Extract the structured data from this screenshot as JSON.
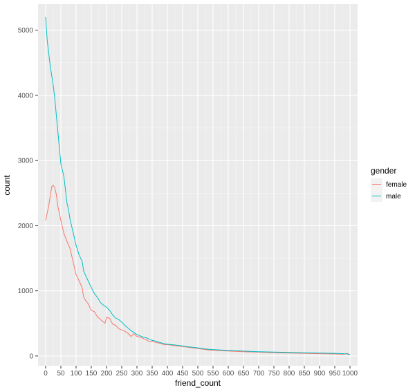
{
  "chart_data": {
    "type": "line",
    "title": "",
    "xlabel": "friend_count",
    "ylabel": "count",
    "xlim": [
      -25,
      1025
    ],
    "ylim": [
      -150,
      5400
    ],
    "x_ticks": [
      0,
      50,
      100,
      150,
      200,
      250,
      300,
      350,
      400,
      450,
      500,
      550,
      600,
      650,
      700,
      750,
      800,
      850,
      900,
      950,
      1000
    ],
    "y_ticks": [
      0,
      1000,
      2000,
      3000,
      4000,
      5000
    ],
    "grid": true,
    "legend": {
      "title": "gender",
      "position": "right"
    },
    "series": [
      {
        "name": "female",
        "color": "#F8766D",
        "points": [
          [
            0,
            2080
          ],
          [
            10,
            2300
          ],
          [
            20,
            2600
          ],
          [
            25,
            2620
          ],
          [
            30,
            2580
          ],
          [
            35,
            2480
          ],
          [
            40,
            2300
          ],
          [
            50,
            2080
          ],
          [
            60,
            1880
          ],
          [
            70,
            1760
          ],
          [
            80,
            1650
          ],
          [
            90,
            1450
          ],
          [
            100,
            1250
          ],
          [
            110,
            1150
          ],
          [
            120,
            1050
          ],
          [
            125,
            900
          ],
          [
            130,
            860
          ],
          [
            140,
            800
          ],
          [
            150,
            700
          ],
          [
            160,
            680
          ],
          [
            170,
            600
          ],
          [
            180,
            560
          ],
          [
            190,
            520
          ],
          [
            195,
            500
          ],
          [
            200,
            590
          ],
          [
            210,
            580
          ],
          [
            220,
            490
          ],
          [
            230,
            470
          ],
          [
            240,
            420
          ],
          [
            250,
            400
          ],
          [
            260,
            380
          ],
          [
            270,
            350
          ],
          [
            280,
            300
          ],
          [
            290,
            340
          ],
          [
            300,
            300
          ],
          [
            310,
            290
          ],
          [
            320,
            270
          ],
          [
            330,
            250
          ],
          [
            340,
            220
          ],
          [
            350,
            230
          ],
          [
            360,
            210
          ],
          [
            370,
            200
          ],
          [
            380,
            190
          ],
          [
            390,
            170
          ],
          [
            400,
            175
          ],
          [
            420,
            160
          ],
          [
            440,
            150
          ],
          [
            460,
            140
          ],
          [
            480,
            125
          ],
          [
            500,
            115
          ],
          [
            520,
            100
          ],
          [
            540,
            90
          ],
          [
            560,
            85
          ],
          [
            580,
            80
          ],
          [
            600,
            75
          ],
          [
            650,
            65
          ],
          [
            700,
            58
          ],
          [
            750,
            50
          ],
          [
            800,
            45
          ],
          [
            850,
            40
          ],
          [
            900,
            35
          ],
          [
            950,
            30
          ],
          [
            980,
            25
          ],
          [
            990,
            40
          ],
          [
            1000,
            20
          ]
        ]
      },
      {
        "name": "male",
        "color": "#00BFC4",
        "points": [
          [
            0,
            5200
          ],
          [
            5,
            4850
          ],
          [
            10,
            4650
          ],
          [
            15,
            4450
          ],
          [
            20,
            4300
          ],
          [
            25,
            4150
          ],
          [
            30,
            3950
          ],
          [
            35,
            3700
          ],
          [
            40,
            3450
          ],
          [
            45,
            3200
          ],
          [
            50,
            2950
          ],
          [
            55,
            2850
          ],
          [
            60,
            2750
          ],
          [
            65,
            2550
          ],
          [
            70,
            2350
          ],
          [
            75,
            2250
          ],
          [
            80,
            2100
          ],
          [
            90,
            1900
          ],
          [
            100,
            1700
          ],
          [
            110,
            1550
          ],
          [
            120,
            1450
          ],
          [
            125,
            1300
          ],
          [
            130,
            1250
          ],
          [
            140,
            1150
          ],
          [
            150,
            1050
          ],
          [
            160,
            960
          ],
          [
            170,
            900
          ],
          [
            180,
            820
          ],
          [
            190,
            780
          ],
          [
            200,
            750
          ],
          [
            210,
            700
          ],
          [
            220,
            630
          ],
          [
            230,
            580
          ],
          [
            240,
            560
          ],
          [
            250,
            520
          ],
          [
            260,
            470
          ],
          [
            270,
            430
          ],
          [
            280,
            390
          ],
          [
            290,
            360
          ],
          [
            300,
            330
          ],
          [
            310,
            310
          ],
          [
            320,
            290
          ],
          [
            330,
            280
          ],
          [
            340,
            260
          ],
          [
            350,
            240
          ],
          [
            360,
            230
          ],
          [
            370,
            215
          ],
          [
            380,
            200
          ],
          [
            390,
            190
          ],
          [
            400,
            180
          ],
          [
            420,
            170
          ],
          [
            440,
            160
          ],
          [
            460,
            145
          ],
          [
            480,
            135
          ],
          [
            500,
            125
          ],
          [
            520,
            110
          ],
          [
            540,
            100
          ],
          [
            560,
            95
          ],
          [
            580,
            90
          ],
          [
            600,
            85
          ],
          [
            650,
            75
          ],
          [
            700,
            65
          ],
          [
            750,
            60
          ],
          [
            800,
            55
          ],
          [
            850,
            50
          ],
          [
            900,
            45
          ],
          [
            950,
            40
          ],
          [
            980,
            35
          ],
          [
            990,
            30
          ],
          [
            1000,
            20
          ]
        ]
      }
    ]
  }
}
